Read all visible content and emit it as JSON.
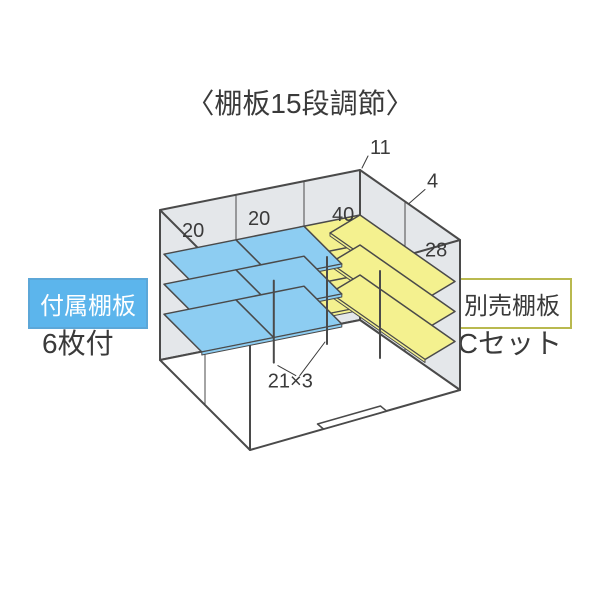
{
  "title": "〈棚板15段調節〉",
  "left": {
    "badge": "付属棚板",
    "sub": "6枚付",
    "badge_bg": "#5cb5ec",
    "badge_border": "#5ca7d8",
    "badge_text": "#ffffff",
    "shelf_fill": "#8dcdf2",
    "shelf_stroke": "#4a4a4a"
  },
  "right": {
    "badge": "別売棚板",
    "sub": "Cセット",
    "badge_bg": "#ffffff",
    "badge_border": "#b9b94f",
    "badge_text": "#3a3a3a",
    "shelf_fill": "#f4f18f",
    "shelf_stroke": "#4a4a4a"
  },
  "dims": {
    "d11": "11",
    "d20a": "20",
    "d20b": "20",
    "d4": "4",
    "d40": "40",
    "d28": "28",
    "d21x3": "21×3"
  },
  "box": {
    "stroke": "#4a4a4a",
    "wall_fill": "#e4e7ea",
    "floor_fill": "#ffffff",
    "doorframe_stroke": "#4a4a4a"
  }
}
